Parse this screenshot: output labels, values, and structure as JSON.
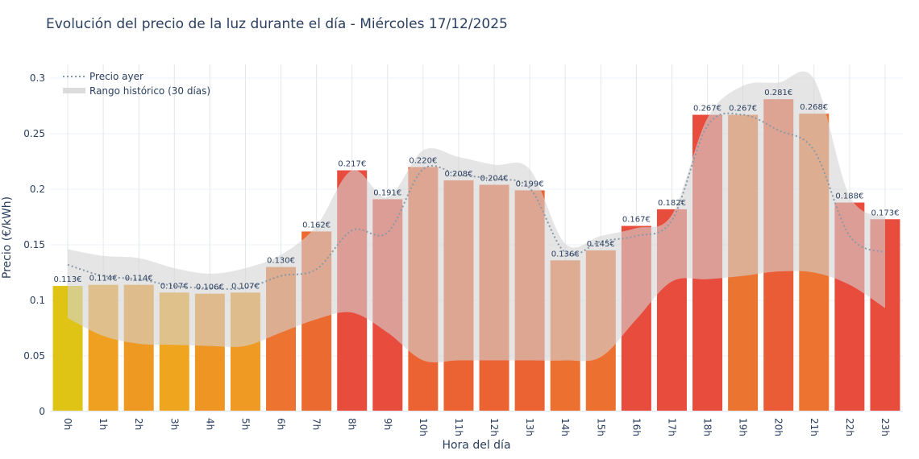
{
  "chart_data": {
    "type": "bar",
    "title": "Evolución del precio de la luz durante el día - Miércoles 17/12/2025",
    "xlabel": "Hora del día",
    "ylabel": "Precio (€/kWh)",
    "ylim": [
      0,
      0.32
    ],
    "yticks": [
      0,
      0.05,
      0.1,
      0.15,
      0.2,
      0.25,
      0.3
    ],
    "ytick_labels": [
      "0",
      "0.05",
      "0.1",
      "0.15",
      "0.2",
      "0.25",
      "0.3"
    ],
    "grid": true,
    "legend_position": "top-left",
    "categories": [
      "0h",
      "1h",
      "2h",
      "3h",
      "4h",
      "5h",
      "6h",
      "7h",
      "8h",
      "9h",
      "10h",
      "11h",
      "12h",
      "13h",
      "14h",
      "15h",
      "16h",
      "17h",
      "18h",
      "19h",
      "20h",
      "21h",
      "22h",
      "23h"
    ],
    "values": [
      0.113,
      0.114,
      0.114,
      0.107,
      0.106,
      0.107,
      0.13,
      0.162,
      0.217,
      0.191,
      0.22,
      0.208,
      0.204,
      0.199,
      0.136,
      0.145,
      0.167,
      0.182,
      0.267,
      0.267,
      0.281,
      0.268,
      0.188,
      0.173
    ],
    "data_labels": [
      "0.113€",
      "0.114€",
      "0.114€",
      "0.107€",
      "0.106€",
      "0.107€",
      "0.130€",
      "0.162€",
      "0.217€",
      "0.191€",
      "0.220€",
      "0.208€",
      "0.204€",
      "0.199€",
      "0.136€",
      "0.145€",
      "0.167€",
      "0.182€",
      "0.267€",
      "0.267€",
      "0.281€",
      "0.268€",
      "0.188€",
      "0.173€"
    ],
    "bar_colors": [
      "#dfc315",
      "#f0a020",
      "#ee9a22",
      "#f0a51e",
      "#ee9524",
      "#ef9a22",
      "#ec7430",
      "#ea6a30",
      "#e84c3d",
      "#e84c3d",
      "#eb6332",
      "#eb6332",
      "#eb6332",
      "#eb6332",
      "#ec7030",
      "#ec7030",
      "#e84c3d",
      "#e84c3d",
      "#e84c3d",
      "#eb7530",
      "#ea5c36",
      "#ec7430",
      "#e84c3d",
      "#e84c3d"
    ],
    "series": [
      {
        "name": "Precio ayer",
        "style": "dotted-line",
        "color": "#8a99a6",
        "values": [
          0.132,
          0.122,
          0.119,
          0.113,
          0.111,
          0.111,
          0.122,
          0.128,
          0.163,
          0.161,
          0.218,
          0.213,
          0.209,
          0.201,
          0.143,
          0.153,
          0.158,
          0.172,
          0.257,
          0.267,
          0.253,
          0.235,
          0.158,
          0.143
        ]
      },
      {
        "name": "Rango histórico (30 días)",
        "style": "band",
        "color": "#d3d3d3",
        "upper": [
          0.146,
          0.14,
          0.138,
          0.129,
          0.124,
          0.129,
          0.141,
          0.167,
          0.217,
          0.193,
          0.235,
          0.229,
          0.222,
          0.218,
          0.151,
          0.158,
          0.165,
          0.177,
          0.264,
          0.293,
          0.296,
          0.299,
          0.194,
          0.175
        ],
        "lower": [
          0.084,
          0.068,
          0.061,
          0.06,
          0.059,
          0.059,
          0.071,
          0.083,
          0.089,
          0.071,
          0.046,
          0.046,
          0.046,
          0.046,
          0.046,
          0.049,
          0.083,
          0.117,
          0.119,
          0.122,
          0.126,
          0.125,
          0.114,
          0.093
        ]
      }
    ]
  }
}
